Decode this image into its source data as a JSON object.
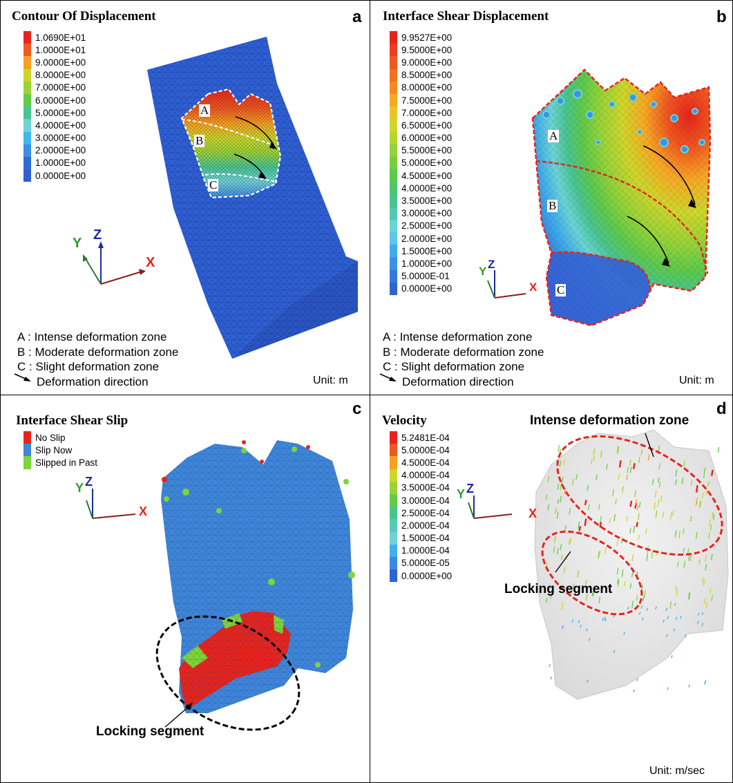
{
  "panels": {
    "a": {
      "label": "a",
      "title": "Contour Of Displacement",
      "legend": [
        {
          "value": "1.0690E+01",
          "color": "#e8231c"
        },
        {
          "value": "1.0000E+01",
          "color": "#f0581f"
        },
        {
          "value": "9.0000E+00",
          "color": "#f7a021"
        },
        {
          "value": "8.0000E+00",
          "color": "#ccd52a"
        },
        {
          "value": "7.0000E+00",
          "color": "#9bd336"
        },
        {
          "value": "6.0000E+00",
          "color": "#63cc47"
        },
        {
          "value": "5.0000E+00",
          "color": "#48c691"
        },
        {
          "value": "4.0000E+00",
          "color": "#6fd2d8"
        },
        {
          "value": "3.0000E+00",
          "color": "#3fb6ec"
        },
        {
          "value": "2.0000E+00",
          "color": "#3c8ee6"
        },
        {
          "value": "1.0000E+00",
          "color": "#2f6ad9"
        },
        {
          "value": "0.0000E+00",
          "color": "#2f5ed3"
        }
      ],
      "zones": [
        "A",
        "B",
        "C"
      ],
      "notes": [
        "A : Intense deformation zone",
        "B : Moderate deformation zone",
        "C : Slight deformation zone",
        "Deformation direction"
      ],
      "unit": "Unit: m",
      "axes": {
        "x": "X",
        "y": "Y",
        "z": "Z"
      }
    },
    "b": {
      "label": "b",
      "title": "Interface Shear Displacement",
      "legend": [
        {
          "value": "9.9527E+00",
          "color": "#e8231c"
        },
        {
          "value": "9.5000E+00",
          "color": "#ec3d1d"
        },
        {
          "value": "9.0000E+00",
          "color": "#f0561f"
        },
        {
          "value": "8.5000E+00",
          "color": "#f37020"
        },
        {
          "value": "8.0000E+00",
          "color": "#f68a21"
        },
        {
          "value": "7.5000E+00",
          "color": "#f8a823"
        },
        {
          "value": "7.0000E+00",
          "color": "#e8c526"
        },
        {
          "value": "6.5000E+00",
          "color": "#cfd62a"
        },
        {
          "value": "6.0000E+00",
          "color": "#b2d630"
        },
        {
          "value": "5.5000E+00",
          "color": "#95d338"
        },
        {
          "value": "5.0000E+00",
          "color": "#76cf41"
        },
        {
          "value": "4.5000E+00",
          "color": "#5cc94c"
        },
        {
          "value": "4.0000E+00",
          "color": "#4cc66c"
        },
        {
          "value": "3.5000E+00",
          "color": "#48c48f"
        },
        {
          "value": "3.0000E+00",
          "color": "#52c9b1"
        },
        {
          "value": "2.5000E+00",
          "color": "#6bd4d6"
        },
        {
          "value": "2.0000E+00",
          "color": "#5cc6ec"
        },
        {
          "value": "1.5000E+00",
          "color": "#3fadea"
        },
        {
          "value": "1.0000E+00",
          "color": "#3a92e5"
        },
        {
          "value": "5.0000E-01",
          "color": "#3379de"
        },
        {
          "value": "0.0000E+00",
          "color": "#2f63d5"
        }
      ],
      "zones": [
        "A",
        "B",
        "C"
      ],
      "notes": [
        "A : Intense deformation zone",
        "B : Moderate deformation zone",
        "C : Slight deformation zone",
        "Deformation direction"
      ],
      "unit": "Unit: m",
      "axes": {
        "x": "X",
        "y": "Y",
        "z": "Z"
      }
    },
    "c": {
      "label": "c",
      "title": "Interface Shear Slip",
      "legend": [
        {
          "value": "No Slip",
          "color": "#e8231c"
        },
        {
          "value": "Slip Now",
          "color": "#3f86d8"
        },
        {
          "value": "Slipped in Past",
          "color": "#7ed43a"
        }
      ],
      "callout": "Locking segment",
      "axes": {
        "x": "X",
        "y": "Y",
        "z": "Z"
      }
    },
    "d": {
      "label": "d",
      "title": "Velocity",
      "legend": [
        {
          "value": "5.2481E-04",
          "color": "#e8231c"
        },
        {
          "value": "5.0000E-04",
          "color": "#f0561f"
        },
        {
          "value": "4.5000E-04",
          "color": "#f7a021"
        },
        {
          "value": "4.0000E-04",
          "color": "#cfd62a"
        },
        {
          "value": "3.5000E-04",
          "color": "#9bd336"
        },
        {
          "value": "3.0000E-04",
          "color": "#63cc47"
        },
        {
          "value": "2.5000E-04",
          "color": "#48c68a"
        },
        {
          "value": "2.0000E-04",
          "color": "#55ccb8"
        },
        {
          "value": "1.5000E-04",
          "color": "#6fd2d8"
        },
        {
          "value": "1.0000E-04",
          "color": "#3fb0ec"
        },
        {
          "value": "5.0000E-05",
          "color": "#3a88e3"
        },
        {
          "value": "0.0000E+00",
          "color": "#2f63d5"
        }
      ],
      "callout_top": "Intense deformation zone",
      "callout_bottom": "Locking segment",
      "unit": "Unit: m/sec",
      "axes": {
        "x": "X",
        "y": "Y",
        "z": "Z"
      }
    }
  }
}
